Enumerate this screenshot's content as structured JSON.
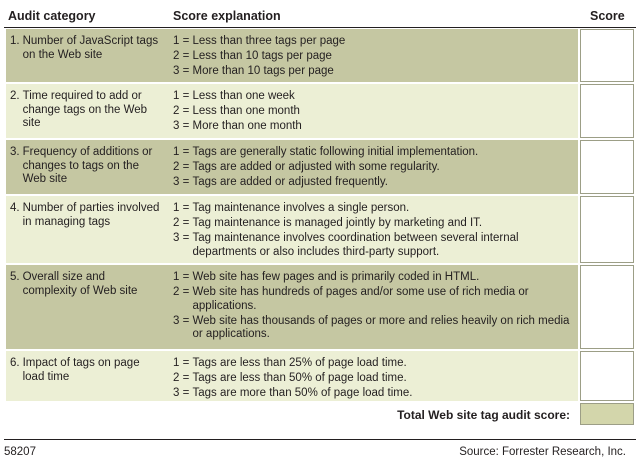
{
  "header": {
    "audit_category": "Audit category",
    "score_explanation": "Score explanation",
    "score": "Score"
  },
  "rows": [
    {
      "num": "1.",
      "category": "Number of JavaScript tags on the Web site",
      "items": [
        {
          "key": "1 = ",
          "text": "Less than three tags per page"
        },
        {
          "key": "2 = ",
          "text": "Less than 10 tags per page"
        },
        {
          "key": "3 = ",
          "text": "More than 10 tags per page"
        }
      ]
    },
    {
      "num": "2.",
      "category": "Time required to add or change tags on the Web site",
      "items": [
        {
          "key": "1 = ",
          "text": "Less than one week"
        },
        {
          "key": "2 = ",
          "text": "Less than one month"
        },
        {
          "key": "3 = ",
          "text": "More than one month"
        }
      ]
    },
    {
      "num": "3.",
      "category": "Frequency of additions or changes to tags on the Web site",
      "items": [
        {
          "key": "1 = ",
          "text": "Tags are generally static following initial implementation."
        },
        {
          "key": "2 = ",
          "text": "Tags are added or adjusted with some regularity."
        },
        {
          "key": "3 = ",
          "text": "Tags are added or adjusted frequently."
        }
      ]
    },
    {
      "num": "4.",
      "category": "Number of parties involved in managing tags",
      "items": [
        {
          "key": "1 = ",
          "text": "Tag maintenance involves a single person."
        },
        {
          "key": "2 = ",
          "text": "Tag maintenance is managed jointly by marketing and IT."
        },
        {
          "key": "3 = ",
          "text": "Tag maintenance involves coordination between several internal departments or also includes third-party support."
        }
      ]
    },
    {
      "num": "5.",
      "category": "Overall size and complexity of Web site",
      "items": [
        {
          "key": "1 = ",
          "text": "Web site has few pages and is primarily coded in HTML."
        },
        {
          "key": "2 = ",
          "text": "Web site has hundreds of pages and/or some use of rich media or applications."
        },
        {
          "key": "3 = ",
          "text": "Web site has thousands of pages or more and relies heavily on rich media or applications."
        }
      ]
    },
    {
      "num": "6.",
      "category": "Impact of tags on page load time",
      "items": [
        {
          "key": "1 = ",
          "text": "Tags are less than 25% of page load time."
        },
        {
          "key": "2 = ",
          "text": "Tags are less than 50% of page load time."
        },
        {
          "key": "3 = ",
          "text": "Tags are more than 50% of page load time."
        }
      ]
    }
  ],
  "total_label": "Total Web site tag audit score:",
  "footer": {
    "id": "58207",
    "source": "Source: Forrester Research, Inc."
  },
  "colors": {
    "dark_band": "#c5c7a2",
    "light_band": "#ecefd5",
    "total_box": "#d3d6ab"
  }
}
